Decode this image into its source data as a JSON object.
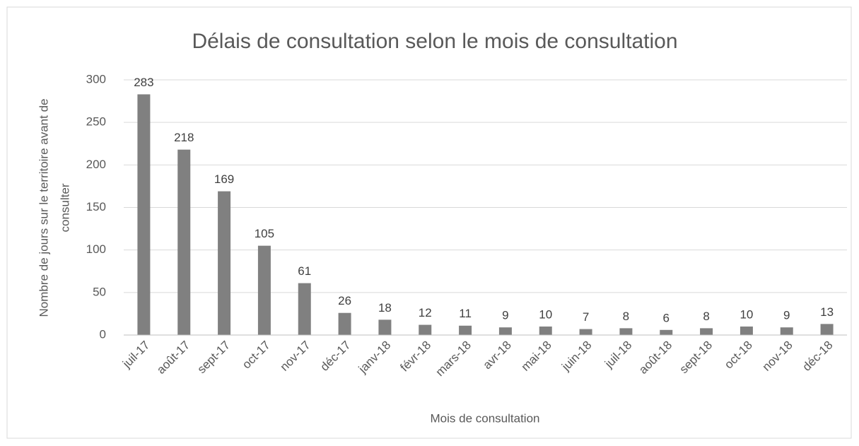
{
  "chart_data": {
    "type": "bar",
    "title": "Délais de consultation selon le mois de consultation",
    "xlabel": "Mois de consultation",
    "ylabel": [
      "Nombre de jours sur le territoire avant de",
      "consulter"
    ],
    "categories": [
      "juil-17",
      "août-17",
      "sept-17",
      "oct-17",
      "nov-17",
      "déc-17",
      "janv-18",
      "févr-18",
      "mars-18",
      "avr-18",
      "mai-18",
      "juin-18",
      "juil-18",
      "août-18",
      "sept-18",
      "oct-18",
      "nov-18",
      "déc-18"
    ],
    "values": [
      283,
      218,
      169,
      105,
      61,
      26,
      18,
      12,
      11,
      9,
      10,
      7,
      8,
      6,
      8,
      10,
      9,
      13
    ],
    "color": "#808080",
    "ylim": [
      0,
      300
    ],
    "yticks": [
      0,
      50,
      100,
      150,
      200,
      250,
      300
    ],
    "grid": true
  }
}
